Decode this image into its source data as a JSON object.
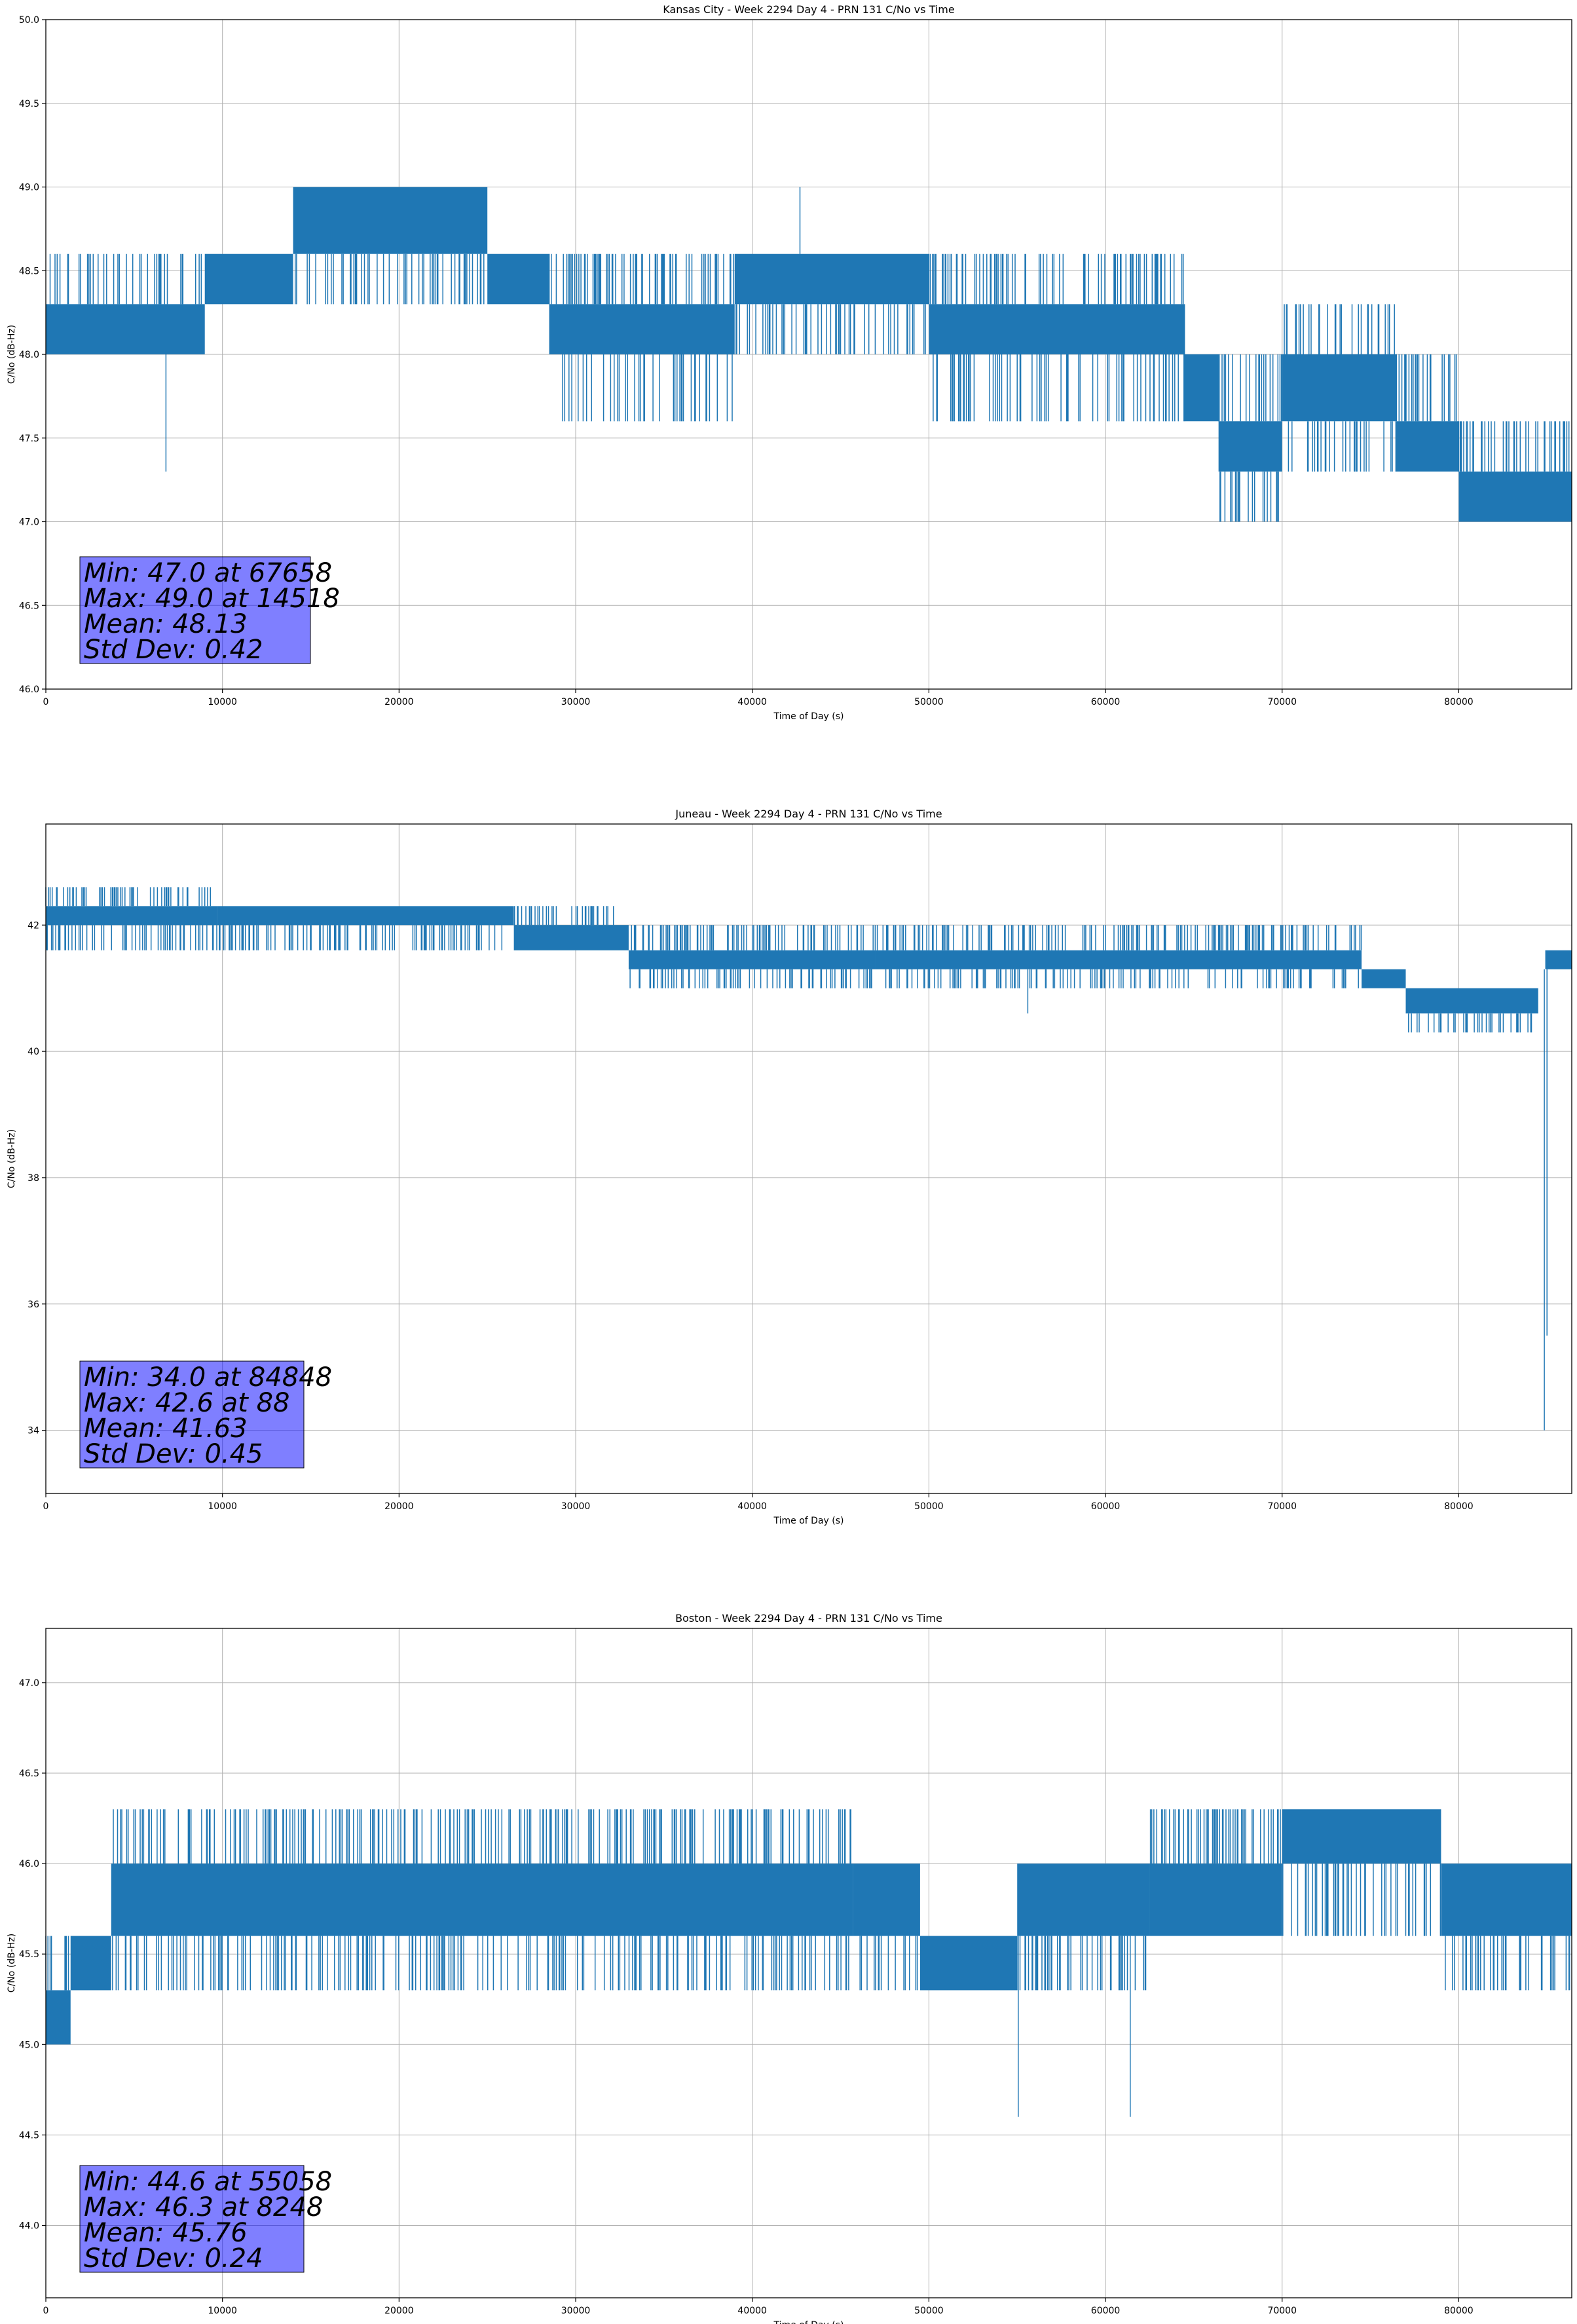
{
  "chart_data": [
    {
      "type": "line",
      "title": "Kansas City - Week 2294 Day 4 - PRN 131 C/No vs Time",
      "xlabel": "Time of Day (s)",
      "ylabel": "C/No (dB-Hz)",
      "xlim": [
        0,
        86400
      ],
      "ylim": [
        46.0,
        50.0
      ],
      "xticks": [
        "0",
        "10000",
        "20000",
        "30000",
        "40000",
        "50000",
        "60000",
        "70000",
        "80000"
      ],
      "yticks": [
        "46.0",
        "46.5",
        "47.0",
        "47.5",
        "48.0",
        "48.5",
        "49.0",
        "49.5",
        "50.0"
      ],
      "grid": true,
      "color": "#1f77b4",
      "stats": [
        "Min: 47.0 at 67658",
        "Max: 49.0 at 14518",
        "Mean: 48.13",
        "Std Dev: 0.42"
      ],
      "series": [
        {
          "segments": [
            {
              "x": [
                0,
                9000
              ],
              "lo": 48.0,
              "hi": 48.3,
              "spike_hi": 48.6
            },
            {
              "x": [
                9000,
                14000
              ],
              "lo": 48.3,
              "hi": 48.6
            },
            {
              "x": [
                14000,
                25000
              ],
              "lo": 48.6,
              "hi": 49.0,
              "spike_lo": 48.3
            },
            {
              "x": [
                25000,
                28500
              ],
              "lo": 48.3,
              "hi": 48.6
            },
            {
              "x": [
                28500,
                39000
              ],
              "lo": 48.0,
              "hi": 48.3,
              "spike_lo": 47.6,
              "spike_hi": 48.6
            },
            {
              "x": [
                39000,
                50000
              ],
              "lo": 48.3,
              "hi": 48.6,
              "spike_lo": 48.0
            },
            {
              "x": [
                50000,
                64500
              ],
              "lo": 48.0,
              "hi": 48.3,
              "spike_lo": 47.6,
              "spike_hi": 48.6
            },
            {
              "x": [
                64500,
                66400
              ],
              "lo": 47.6,
              "hi": 48.0
            },
            {
              "x": [
                66400,
                70000
              ],
              "lo": 47.3,
              "hi": 47.6,
              "spike_lo": 47.0,
              "spike_hi": 48.0
            },
            {
              "x": [
                70000,
                76500
              ],
              "lo": 47.6,
              "hi": 48.0,
              "spike_lo": 47.3,
              "spike_hi": 48.3
            },
            {
              "x": [
                76500,
                80000
              ],
              "lo": 47.3,
              "hi": 47.6,
              "spike_hi": 48.0
            },
            {
              "x": [
                80000,
                86400
              ],
              "lo": 47.0,
              "hi": 47.3,
              "spike_hi": 47.6
            }
          ],
          "spikes": [
            [
              6800,
              47.3
            ],
            [
              42700,
              49.0
            ]
          ]
        }
      ]
    },
    {
      "type": "line",
      "title": "Juneau - Week 2294 Day 4 - PRN 131 C/No vs Time",
      "xlabel": "Time of Day (s)",
      "ylabel": "C/No (dB-Hz)",
      "xlim": [
        0,
        86400
      ],
      "ylim": [
        33.0,
        43.6
      ],
      "xticks": [
        "0",
        "10000",
        "20000",
        "30000",
        "40000",
        "50000",
        "60000",
        "70000",
        "80000"
      ],
      "yticks": [
        "34",
        "36",
        "38",
        "40",
        "42"
      ],
      "ytick_values": [
        34,
        36,
        38,
        40,
        42
      ],
      "grid": true,
      "color": "#1f77b4",
      "stats": [
        "Min: 34.0 at 84848",
        "Max: 42.6 at 88",
        "Mean: 41.63",
        "Std Dev: 0.45"
      ],
      "series": [
        {
          "segments": [
            {
              "x": [
                0,
                9700
              ],
              "lo": 42.0,
              "hi": 42.3,
              "spike_lo": 41.6,
              "spike_hi": 42.6
            },
            {
              "x": [
                9700,
                26500
              ],
              "lo": 42.0,
              "hi": 42.3,
              "spike_lo": 41.6
            },
            {
              "x": [
                26500,
                33000
              ],
              "lo": 41.6,
              "hi": 42.0,
              "spike_hi": 42.3
            },
            {
              "x": [
                33000,
                47000
              ],
              "lo": 41.3,
              "hi": 41.6,
              "spike_lo": 41.0,
              "spike_hi": 42.0
            },
            {
              "x": [
                47000,
                74500
              ],
              "lo": 41.3,
              "hi": 41.6,
              "spike_lo": 41.0,
              "spike_hi": 42.0
            },
            {
              "x": [
                74500,
                77000
              ],
              "lo": 41.0,
              "hi": 41.3
            },
            {
              "x": [
                77000,
                84500
              ],
              "lo": 40.6,
              "hi": 41.0,
              "spike_lo": 40.3
            },
            {
              "x": [
                84900,
                86400
              ],
              "lo": 41.3,
              "hi": 41.6
            }
          ],
          "spikes": [
            [
              55600,
              40.6
            ],
            [
              84848,
              34.0
            ],
            [
              85000,
              35.5
            ]
          ]
        }
      ]
    },
    {
      "type": "line",
      "title": "Boston - Week 2294 Day 4 - PRN 131 C/No vs Time",
      "xlabel": "Time of Day (s)",
      "ylabel": "C/No (dB-Hz)",
      "xlim": [
        0,
        86400
      ],
      "ylim": [
        43.6,
        47.3
      ],
      "xticks": [
        "0",
        "10000",
        "20000",
        "30000",
        "40000",
        "50000",
        "60000",
        "70000",
        "80000"
      ],
      "yticks": [
        "44.0",
        "44.5",
        "45.0",
        "45.5",
        "46.0",
        "46.5",
        "47.0"
      ],
      "ytick_values": [
        44.0,
        44.5,
        45.0,
        45.5,
        46.0,
        46.5,
        47.0
      ],
      "grid": true,
      "color": "#1f77b4",
      "stats": [
        "Min: 44.6 at 55058",
        "Max: 46.3 at 8248",
        "Mean: 45.76",
        "Std Dev: 0.24"
      ],
      "series": [
        {
          "segments": [
            {
              "x": [
                0,
                1400
              ],
              "lo": 45.0,
              "hi": 45.3,
              "spike_hi": 45.6
            },
            {
              "x": [
                1400,
                3700
              ],
              "lo": 45.3,
              "hi": 45.6
            },
            {
              "x": [
                3700,
                45700
              ],
              "lo": 45.6,
              "hi": 46.0,
              "spike_lo": 45.3,
              "spike_hi": 46.3
            },
            {
              "x": [
                45700,
                49500
              ],
              "lo": 45.6,
              "hi": 46.0,
              "spike_lo": 45.3
            },
            {
              "x": [
                49500,
                55000
              ],
              "lo": 45.3,
              "hi": 45.6
            },
            {
              "x": [
                55000,
                62500
              ],
              "lo": 45.6,
              "hi": 46.0,
              "spike_lo": 45.3
            },
            {
              "x": [
                62500,
                70000
              ],
              "lo": 45.6,
              "hi": 46.0,
              "spike_hi": 46.3
            },
            {
              "x": [
                70000,
                79000
              ],
              "lo": 46.0,
              "hi": 46.3,
              "spike_lo": 45.6
            },
            {
              "x": [
                79000,
                86400
              ],
              "lo": 45.6,
              "hi": 46.0,
              "spike_lo": 45.3
            }
          ],
          "spikes": [
            [
              55058,
              44.6
            ],
            [
              61400,
              44.6
            ]
          ]
        }
      ]
    }
  ]
}
